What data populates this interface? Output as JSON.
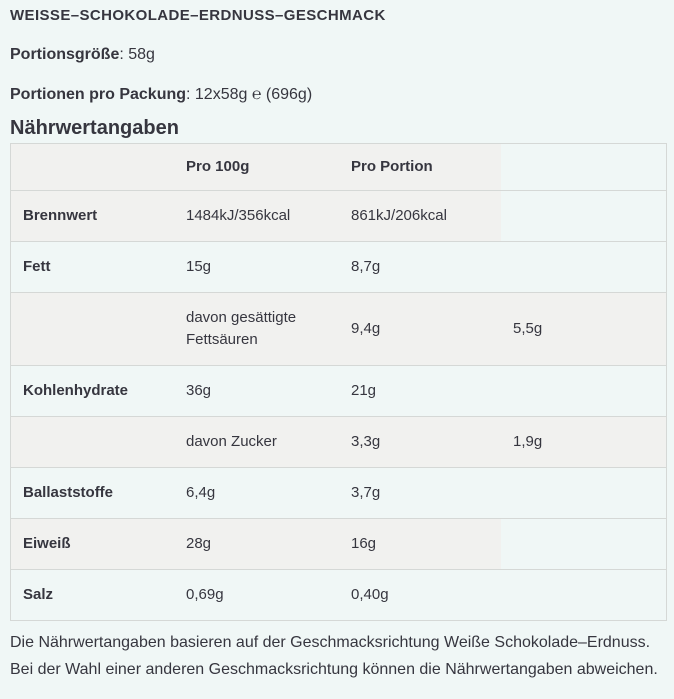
{
  "product": {
    "flavour_title": "WEISSE–SCHOKOLADE–ERDNUSS–GESCHMACK"
  },
  "servings": {
    "size_label": "Portionsgröße",
    "size_value": ": 58g",
    "per_pack_label": "Portionen pro Packung",
    "per_pack_value": ": 12x58g ℮ (696g)"
  },
  "nutrition": {
    "heading": "Nährwertangaben",
    "columns": [
      "",
      "Pro 100g",
      "Pro Portion",
      ""
    ],
    "rows": [
      {
        "label": "Brennwert",
        "per100": "1484kJ/356kcal",
        "portion": "861kJ/206kcal",
        "extra": ""
      },
      {
        "label": "Fett",
        "per100": "15g",
        "portion": "8,7g",
        "extra": ""
      },
      {
        "label": "",
        "per100": "davon gesättigte Fettsäuren",
        "portion": "9,4g",
        "extra": "5,5g"
      },
      {
        "label": "Kohlenhydrate",
        "per100": "36g",
        "portion": "21g",
        "extra": ""
      },
      {
        "label": "",
        "per100": "davon Zucker",
        "portion": "3,3g",
        "extra": "1,9g"
      },
      {
        "label": "Ballaststoffe",
        "per100": "6,4g",
        "portion": "3,7g",
        "extra": ""
      },
      {
        "label": "Eiweiß",
        "per100": "28g",
        "portion": "16g",
        "extra": ""
      },
      {
        "label": "Salz",
        "per100": "0,69g",
        "portion": "0,40g",
        "extra": ""
      }
    ],
    "footnote": "Die Nährwertangaben basieren auf der Geschmacksrichtung Weiße Schokolade–Erdnuss. Bei der Wahl einer anderen Geschmacksrichtung können die Nährwertangaben abweichen."
  },
  "colors": {
    "page_background": "#f0f7f6",
    "row_shade": "#f1f1ef",
    "table_border": "#d5d8d6",
    "text": "#36363f"
  }
}
